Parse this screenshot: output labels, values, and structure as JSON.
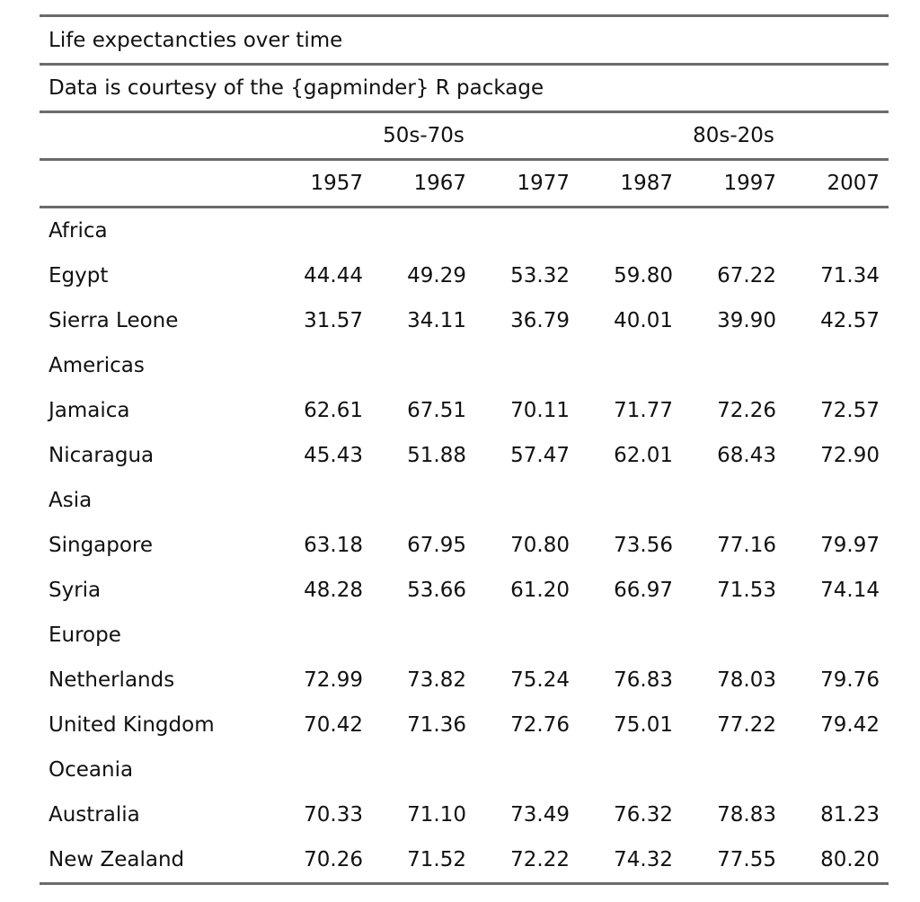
{
  "table": {
    "title": "Life expectancties over time",
    "subtitle": "Data is courtesy of the {gapminder} R package",
    "spanners": [
      "50s-70s",
      "80s-20s"
    ],
    "columns": [
      "1957",
      "1967",
      "1977",
      "1987",
      "1997",
      "2007"
    ],
    "groups": [
      {
        "name": "Africa",
        "rows": [
          {
            "country": "Egypt",
            "values": [
              "44.44",
              "49.29",
              "53.32",
              "59.80",
              "67.22",
              "71.34"
            ]
          },
          {
            "country": "Sierra Leone",
            "values": [
              "31.57",
              "34.11",
              "36.79",
              "40.01",
              "39.90",
              "42.57"
            ]
          }
        ]
      },
      {
        "name": "Americas",
        "rows": [
          {
            "country": "Jamaica",
            "values": [
              "62.61",
              "67.51",
              "70.11",
              "71.77",
              "72.26",
              "72.57"
            ]
          },
          {
            "country": "Nicaragua",
            "values": [
              "45.43",
              "51.88",
              "57.47",
              "62.01",
              "68.43",
              "72.90"
            ]
          }
        ]
      },
      {
        "name": "Asia",
        "rows": [
          {
            "country": "Singapore",
            "values": [
              "63.18",
              "67.95",
              "70.80",
              "73.56",
              "77.16",
              "79.97"
            ]
          },
          {
            "country": "Syria",
            "values": [
              "48.28",
              "53.66",
              "61.20",
              "66.97",
              "71.53",
              "74.14"
            ]
          }
        ]
      },
      {
        "name": "Europe",
        "rows": [
          {
            "country": "Netherlands",
            "values": [
              "72.99",
              "73.82",
              "75.24",
              "76.83",
              "78.03",
              "79.76"
            ]
          },
          {
            "country": "United Kingdom",
            "values": [
              "70.42",
              "71.36",
              "72.76",
              "75.01",
              "77.22",
              "79.42"
            ]
          }
        ]
      },
      {
        "name": "Oceania",
        "rows": [
          {
            "country": "Australia",
            "values": [
              "70.33",
              "71.10",
              "73.49",
              "76.32",
              "78.83",
              "81.23"
            ]
          },
          {
            "country": "New Zealand",
            "values": [
              "70.26",
              "71.52",
              "72.22",
              "74.32",
              "77.55",
              "80.20"
            ]
          }
        ]
      }
    ]
  }
}
